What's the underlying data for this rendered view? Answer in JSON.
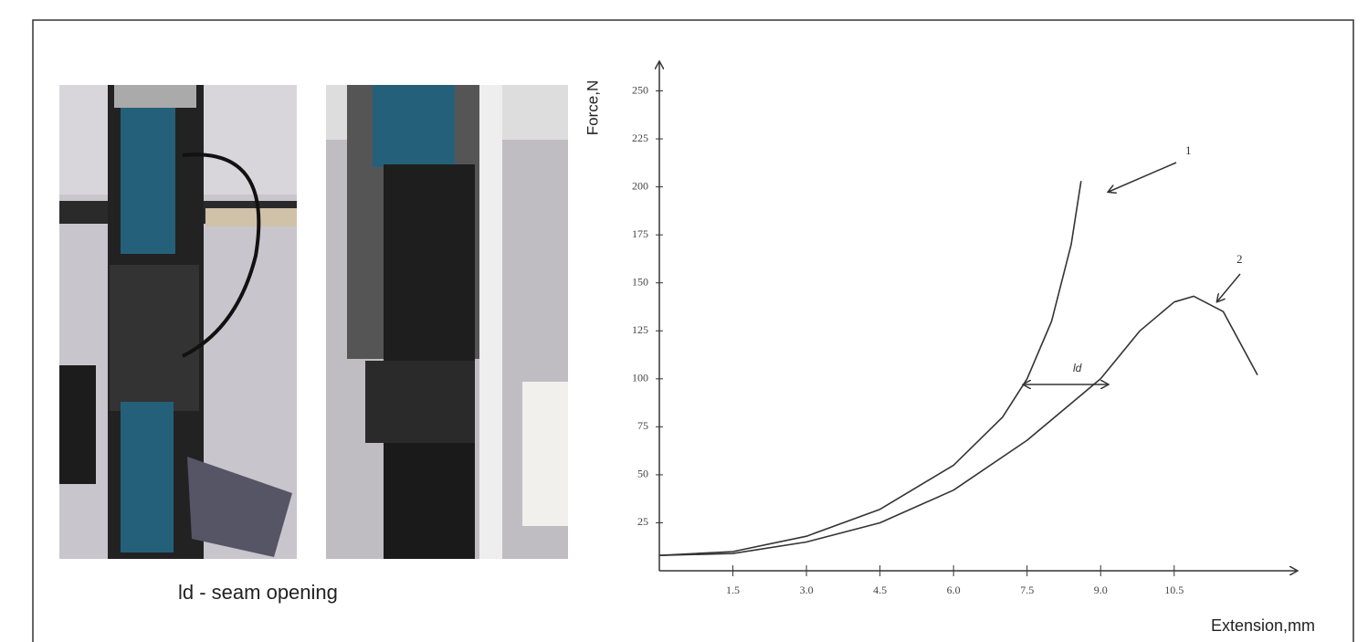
{
  "caption": "ld - seam opening",
  "chart_data": {
    "type": "line",
    "x_label": "Extension,mm",
    "y_label": "Force,N",
    "xlim": [
      0,
      13
    ],
    "ylim": [
      0,
      265
    ],
    "xticks": [
      1.5,
      {
        "value": 3,
        "label": "3.0"
      },
      4.5,
      {
        "value": 6,
        "label": "6.0"
      },
      7.5,
      {
        "value": 9,
        "label": "9.0"
      },
      10.5
    ],
    "yticks": [
      25,
      50,
      75,
      100,
      125,
      150,
      175,
      200,
      225,
      250
    ],
    "grid": false,
    "series": [
      {
        "name": "1",
        "color": "#333333",
        "x": [
          0,
          1.5,
          3,
          4.5,
          6,
          7,
          7.5,
          8,
          8.4,
          8.6
        ],
        "values": [
          8,
          10,
          18,
          32,
          55,
          80,
          100,
          130,
          170,
          203
        ]
      },
      {
        "name": "2",
        "color": "#333333",
        "x": [
          0,
          1.5,
          3,
          4.5,
          6,
          7.5,
          9,
          9.8,
          10.5,
          10.9,
          11.5,
          12.2
        ],
        "values": [
          8,
          9,
          15,
          25,
          42,
          68,
          100,
          125,
          140,
          143,
          135,
          102
        ]
      }
    ],
    "annotations": [
      "1",
      "2",
      "ld"
    ]
  }
}
